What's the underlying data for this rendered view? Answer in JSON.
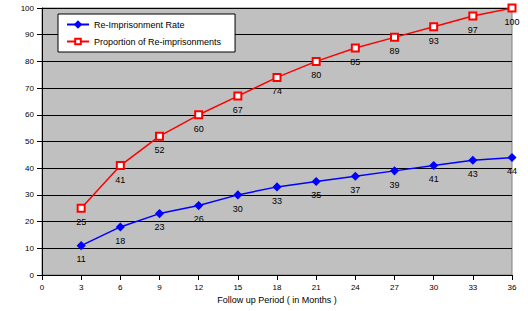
{
  "chart_data": {
    "type": "line",
    "x_label": "Follow up Period ( in Months )",
    "x": [
      3,
      6,
      9,
      12,
      15,
      18,
      21,
      24,
      27,
      30,
      33,
      36
    ],
    "series": [
      {
        "name": "Re-Imprisonment Rate",
        "color": "#0000ff",
        "marker": "diamond",
        "values": [
          11,
          18,
          23,
          26,
          30,
          33,
          35,
          37,
          39,
          41,
          43,
          44
        ]
      },
      {
        "name": "Proportion of Re-imprisonments",
        "color": "#ff0000",
        "marker": "square",
        "values": [
          25,
          41,
          52,
          60,
          67,
          74,
          80,
          85,
          89,
          93,
          97,
          100
        ]
      }
    ],
    "xlim": [
      0,
      36
    ],
    "xticks": [
      0,
      3,
      6,
      9,
      12,
      15,
      18,
      21,
      24,
      27,
      30,
      33,
      36
    ],
    "ylim": [
      0,
      100
    ],
    "yticks": [
      0,
      10,
      20,
      30,
      40,
      50,
      60,
      70,
      80,
      90,
      100
    ],
    "grid": true,
    "legend": "upper left",
    "data_labels": true
  }
}
